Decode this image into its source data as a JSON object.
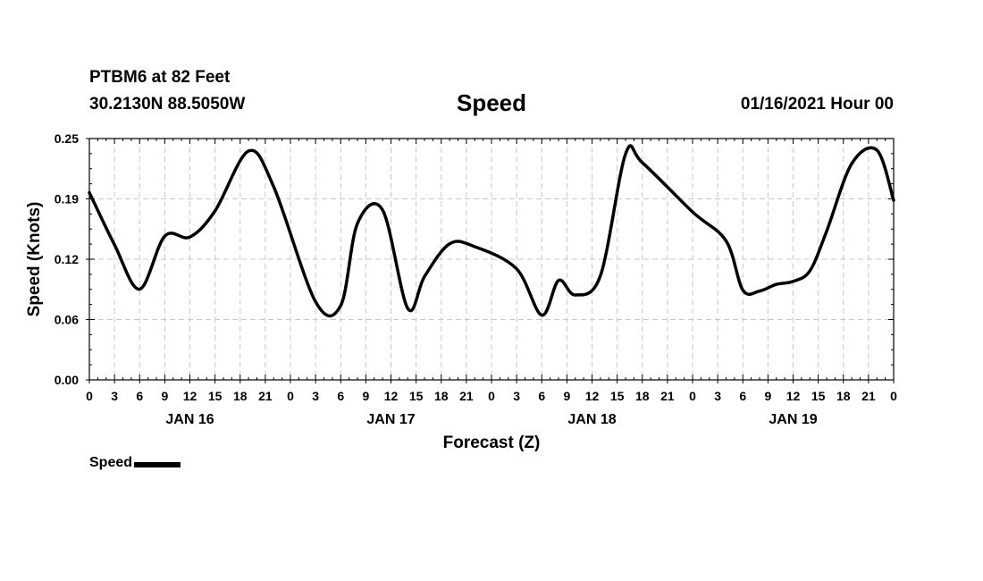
{
  "header": {
    "station": "PTBM6 at 82 Feet",
    "coords": "30.2130N 88.5050W",
    "title": "Speed",
    "date": "01/16/2021 Hour 00"
  },
  "legend": {
    "label": "Speed",
    "color": "#000000"
  },
  "chart_data": {
    "type": "line",
    "title": "Speed",
    "xlabel": "Forecast (Z)",
    "ylabel": "Speed (Knots)",
    "ylim": [
      0.0,
      0.25
    ],
    "yticks": [
      "0.00",
      "0.06",
      "0.12",
      "0.19",
      "0.25"
    ],
    "xlim_hours": [
      0,
      96
    ],
    "xtick_labels": [
      "0",
      "3",
      "6",
      "9",
      "12",
      "15",
      "18",
      "21",
      "0",
      "3",
      "6",
      "9",
      "12",
      "15",
      "18",
      "21",
      "0",
      "3",
      "6",
      "9",
      "12",
      "15",
      "18",
      "21",
      "0",
      "3",
      "6",
      "9",
      "12",
      "15",
      "18",
      "21",
      "0"
    ],
    "day_labels": [
      {
        "label": "JAN 16",
        "hour": 12
      },
      {
        "label": "JAN 17",
        "hour": 36
      },
      {
        "label": "JAN 18",
        "hour": 60
      },
      {
        "label": "JAN 19",
        "hour": 84
      }
    ],
    "grid": true,
    "legend_position": "bottom-left",
    "series": [
      {
        "name": "Speed",
        "color": "#000000",
        "x": [
          0,
          3,
          6,
          9,
          12,
          15,
          19,
          22,
          27,
          30,
          32,
          35,
          38,
          40,
          43,
          46,
          51,
          54,
          56,
          58,
          61,
          64,
          66,
          72,
          76,
          78,
          80,
          82,
          84,
          86,
          88,
          91,
          94,
          96
        ],
        "y": [
          0.194,
          0.14,
          0.094,
          0.149,
          0.148,
          0.175,
          0.237,
          0.2,
          0.081,
          0.077,
          0.162,
          0.176,
          0.074,
          0.107,
          0.141,
          0.138,
          0.115,
          0.067,
          0.103,
          0.088,
          0.108,
          0.234,
          0.225,
          0.174,
          0.144,
          0.093,
          0.092,
          0.099,
          0.102,
          0.113,
          0.154,
          0.224,
          0.238,
          0.186
        ]
      }
    ]
  }
}
